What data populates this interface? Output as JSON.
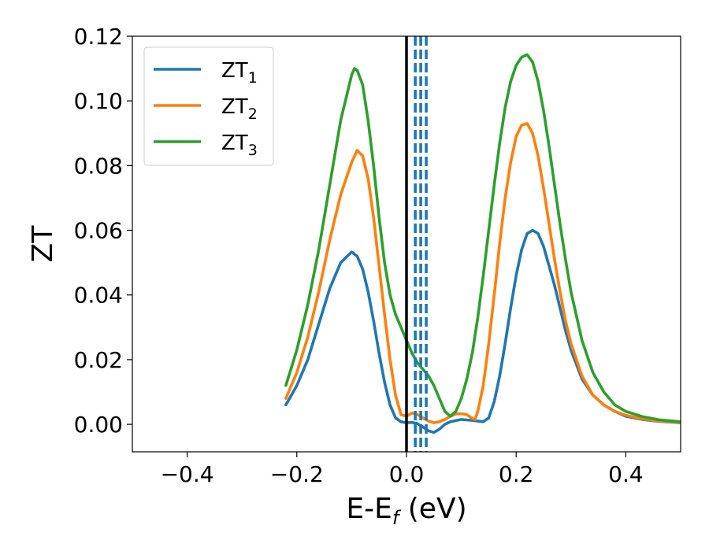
{
  "chart_data": {
    "type": "line",
    "title": "",
    "xlabel": "E-E",
    "xlabel_subscript": "f",
    "xlabel_unit": " (eV)",
    "ylabel": "ZT",
    "xlim": [
      -0.5,
      0.5
    ],
    "ylim": [
      -0.0085,
      0.12
    ],
    "x_ticks": [
      -0.4,
      -0.2,
      0.0,
      0.2,
      0.4
    ],
    "x_tick_labels": [
      "−0.4",
      "−0.2",
      "0.0",
      "0.2",
      "0.4"
    ],
    "y_ticks": [
      0.0,
      0.02,
      0.04,
      0.06,
      0.08,
      0.1,
      0.12
    ],
    "y_tick_labels": [
      "0.00",
      "0.02",
      "0.04",
      "0.06",
      "0.08",
      "0.10",
      "0.12"
    ],
    "grid": false,
    "legend_position": "top-left",
    "vertical_lines": [
      {
        "x": 0.0,
        "style": "solid",
        "color": "#000000"
      },
      {
        "x": 0.016,
        "style": "dashed",
        "color": "#1f77b4"
      },
      {
        "x": 0.026,
        "style": "dashed",
        "color": "#1f77b4"
      },
      {
        "x": 0.036,
        "style": "dashed",
        "color": "#1f77b4"
      }
    ],
    "series": [
      {
        "name": "ZT",
        "subscript": "1",
        "color": "#1f77b4",
        "points": [
          [
            -0.22,
            0.006
          ],
          [
            -0.2,
            0.012
          ],
          [
            -0.18,
            0.02
          ],
          [
            -0.16,
            0.031
          ],
          [
            -0.14,
            0.042
          ],
          [
            -0.12,
            0.05
          ],
          [
            -0.1,
            0.0533
          ],
          [
            -0.09,
            0.052
          ],
          [
            -0.08,
            0.048
          ],
          [
            -0.07,
            0.041
          ],
          [
            -0.06,
            0.032
          ],
          [
            -0.05,
            0.022
          ],
          [
            -0.04,
            0.013
          ],
          [
            -0.03,
            0.006
          ],
          [
            -0.02,
            0.002
          ],
          [
            -0.01,
            0.0008
          ],
          [
            0.0,
            0.0005
          ],
          [
            0.01,
            0.0006
          ],
          [
            0.02,
            0.0002
          ],
          [
            0.03,
            -0.0008
          ],
          [
            0.04,
            -0.002
          ],
          [
            0.05,
            -0.0025
          ],
          [
            0.06,
            -0.0015
          ],
          [
            0.07,
            0.0
          ],
          [
            0.08,
            0.0008
          ],
          [
            0.1,
            0.0015
          ],
          [
            0.12,
            0.0012
          ],
          [
            0.14,
            0.0008
          ],
          [
            0.15,
            0.002
          ],
          [
            0.16,
            0.007
          ],
          [
            0.17,
            0.015
          ],
          [
            0.18,
            0.025
          ],
          [
            0.19,
            0.036
          ],
          [
            0.2,
            0.046
          ],
          [
            0.21,
            0.054
          ],
          [
            0.22,
            0.059
          ],
          [
            0.23,
            0.06
          ],
          [
            0.24,
            0.059
          ],
          [
            0.25,
            0.055
          ],
          [
            0.26,
            0.049
          ],
          [
            0.27,
            0.043
          ],
          [
            0.28,
            0.036
          ],
          [
            0.29,
            0.029
          ],
          [
            0.3,
            0.023
          ],
          [
            0.32,
            0.014
          ],
          [
            0.34,
            0.009
          ],
          [
            0.36,
            0.006
          ],
          [
            0.38,
            0.004
          ],
          [
            0.4,
            0.0025
          ],
          [
            0.43,
            0.0015
          ],
          [
            0.46,
            0.0009
          ],
          [
            0.5,
            0.0005
          ]
        ]
      },
      {
        "name": "ZT",
        "subscript": "2",
        "color": "#ff7f0e",
        "points": [
          [
            -0.22,
            0.008
          ],
          [
            -0.2,
            0.016
          ],
          [
            -0.18,
            0.027
          ],
          [
            -0.16,
            0.041
          ],
          [
            -0.14,
            0.057
          ],
          [
            -0.12,
            0.071
          ],
          [
            -0.1,
            0.081
          ],
          [
            -0.09,
            0.0847
          ],
          [
            -0.08,
            0.083
          ],
          [
            -0.07,
            0.076
          ],
          [
            -0.06,
            0.064
          ],
          [
            -0.05,
            0.049
          ],
          [
            -0.04,
            0.034
          ],
          [
            -0.03,
            0.02
          ],
          [
            -0.02,
            0.009
          ],
          [
            -0.01,
            0.003
          ],
          [
            0.0,
            0.0025
          ],
          [
            0.01,
            0.0035
          ],
          [
            0.02,
            0.003
          ],
          [
            0.03,
            0.002
          ],
          [
            0.04,
            0.001
          ],
          [
            0.05,
            0.0005
          ],
          [
            0.06,
            0.0008
          ],
          [
            0.07,
            0.0015
          ],
          [
            0.08,
            0.0025
          ],
          [
            0.09,
            0.0032
          ],
          [
            0.1,
            0.0033
          ],
          [
            0.11,
            0.003
          ],
          [
            0.12,
            0.0018
          ],
          [
            0.125,
            0.0015
          ],
          [
            0.13,
            0.004
          ],
          [
            0.14,
            0.012
          ],
          [
            0.15,
            0.025
          ],
          [
            0.16,
            0.04
          ],
          [
            0.17,
            0.056
          ],
          [
            0.18,
            0.07
          ],
          [
            0.19,
            0.081
          ],
          [
            0.2,
            0.089
          ],
          [
            0.21,
            0.0925
          ],
          [
            0.22,
            0.093
          ],
          [
            0.23,
            0.09
          ],
          [
            0.24,
            0.083
          ],
          [
            0.25,
            0.073
          ],
          [
            0.26,
            0.062
          ],
          [
            0.27,
            0.051
          ],
          [
            0.28,
            0.041
          ],
          [
            0.29,
            0.032
          ],
          [
            0.3,
            0.025
          ],
          [
            0.32,
            0.015
          ],
          [
            0.34,
            0.009
          ],
          [
            0.36,
            0.006
          ],
          [
            0.38,
            0.004
          ],
          [
            0.4,
            0.0028
          ],
          [
            0.43,
            0.0017
          ],
          [
            0.46,
            0.001
          ],
          [
            0.5,
            0.0006
          ]
        ]
      },
      {
        "name": "ZT",
        "subscript": "3",
        "color": "#2ca02c",
        "points": [
          [
            -0.22,
            0.012
          ],
          [
            -0.2,
            0.023
          ],
          [
            -0.18,
            0.037
          ],
          [
            -0.16,
            0.054
          ],
          [
            -0.14,
            0.074
          ],
          [
            -0.12,
            0.094
          ],
          [
            -0.1,
            0.108
          ],
          [
            -0.095,
            0.11
          ],
          [
            -0.09,
            0.1095
          ],
          [
            -0.08,
            0.105
          ],
          [
            -0.07,
            0.094
          ],
          [
            -0.06,
            0.08
          ],
          [
            -0.05,
            0.064
          ],
          [
            -0.04,
            0.05
          ],
          [
            -0.03,
            0.04
          ],
          [
            -0.02,
            0.034
          ],
          [
            -0.01,
            0.03
          ],
          [
            0.0,
            0.026
          ],
          [
            0.01,
            0.022
          ],
          [
            0.02,
            0.019
          ],
          [
            0.03,
            0.017
          ],
          [
            0.04,
            0.015
          ],
          [
            0.05,
            0.012
          ],
          [
            0.06,
            0.008
          ],
          [
            0.07,
            0.004
          ],
          [
            0.08,
            0.0025
          ],
          [
            0.09,
            0.004
          ],
          [
            0.1,
            0.008
          ],
          [
            0.11,
            0.014
          ],
          [
            0.12,
            0.022
          ],
          [
            0.13,
            0.033
          ],
          [
            0.14,
            0.046
          ],
          [
            0.15,
            0.06
          ],
          [
            0.16,
            0.074
          ],
          [
            0.17,
            0.087
          ],
          [
            0.18,
            0.098
          ],
          [
            0.19,
            0.106
          ],
          [
            0.2,
            0.111
          ],
          [
            0.21,
            0.1135
          ],
          [
            0.22,
            0.1143
          ],
          [
            0.23,
            0.112
          ],
          [
            0.24,
            0.106
          ],
          [
            0.25,
            0.097
          ],
          [
            0.26,
            0.086
          ],
          [
            0.27,
            0.074
          ],
          [
            0.28,
            0.062
          ],
          [
            0.29,
            0.051
          ],
          [
            0.3,
            0.041
          ],
          [
            0.32,
            0.026
          ],
          [
            0.34,
            0.016
          ],
          [
            0.36,
            0.01
          ],
          [
            0.38,
            0.006
          ],
          [
            0.4,
            0.004
          ],
          [
            0.43,
            0.0024
          ],
          [
            0.46,
            0.0014
          ],
          [
            0.5,
            0.0008
          ]
        ]
      }
    ]
  }
}
